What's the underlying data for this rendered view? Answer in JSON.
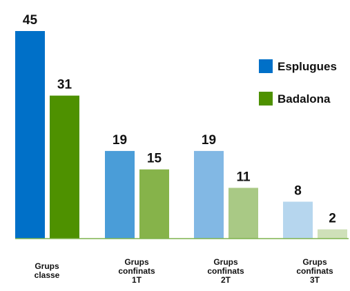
{
  "chart_data": {
    "type": "bar",
    "categories": [
      [
        "Grups",
        "classe"
      ],
      [
        "Grups",
        "confinats",
        "1T"
      ],
      [
        "Grups",
        "confinats",
        "2T"
      ],
      [
        "Grups",
        "confinats",
        "3T"
      ]
    ],
    "series": [
      {
        "name": "Esplugues",
        "values": [
          45,
          19,
          19,
          8
        ],
        "colors": [
          "#0070c8",
          "#4a9dd8",
          "#82b8e4",
          "#b6d6ee"
        ]
      },
      {
        "name": "Badalona",
        "values": [
          31,
          15,
          11,
          2
        ],
        "colors": [
          "#4e9100",
          "#86b34a",
          "#a9c985",
          "#cfe0b9"
        ]
      }
    ],
    "ylim": [
      0,
      45
    ],
    "legend_position": "top-right",
    "baseline_color": "#7fb34d",
    "grid": false
  }
}
